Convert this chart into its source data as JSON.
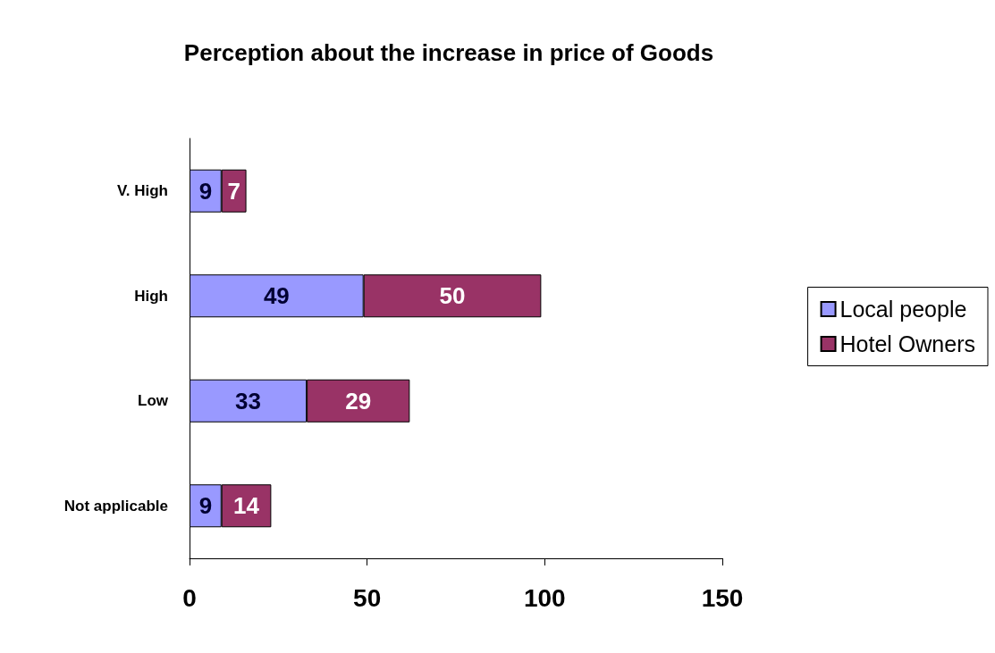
{
  "chart_data": {
    "type": "bar",
    "title": "Perception about the increase in price of Goods",
    "orientation": "horizontal",
    "stacked": true,
    "categories": [
      "V. High",
      "High",
      "Low",
      "Not applicable"
    ],
    "series": [
      {
        "name": "Local people",
        "color": "#9999ff",
        "values": [
          9,
          49,
          33,
          9
        ]
      },
      {
        "name": "Hotel Owners",
        "color": "#993366",
        "values": [
          7,
          50,
          29,
          14
        ]
      }
    ],
    "xlim": [
      0,
      150
    ],
    "xticks": [
      0,
      50,
      100,
      150
    ],
    "data_labels": true,
    "legend": "right",
    "grid": false
  }
}
